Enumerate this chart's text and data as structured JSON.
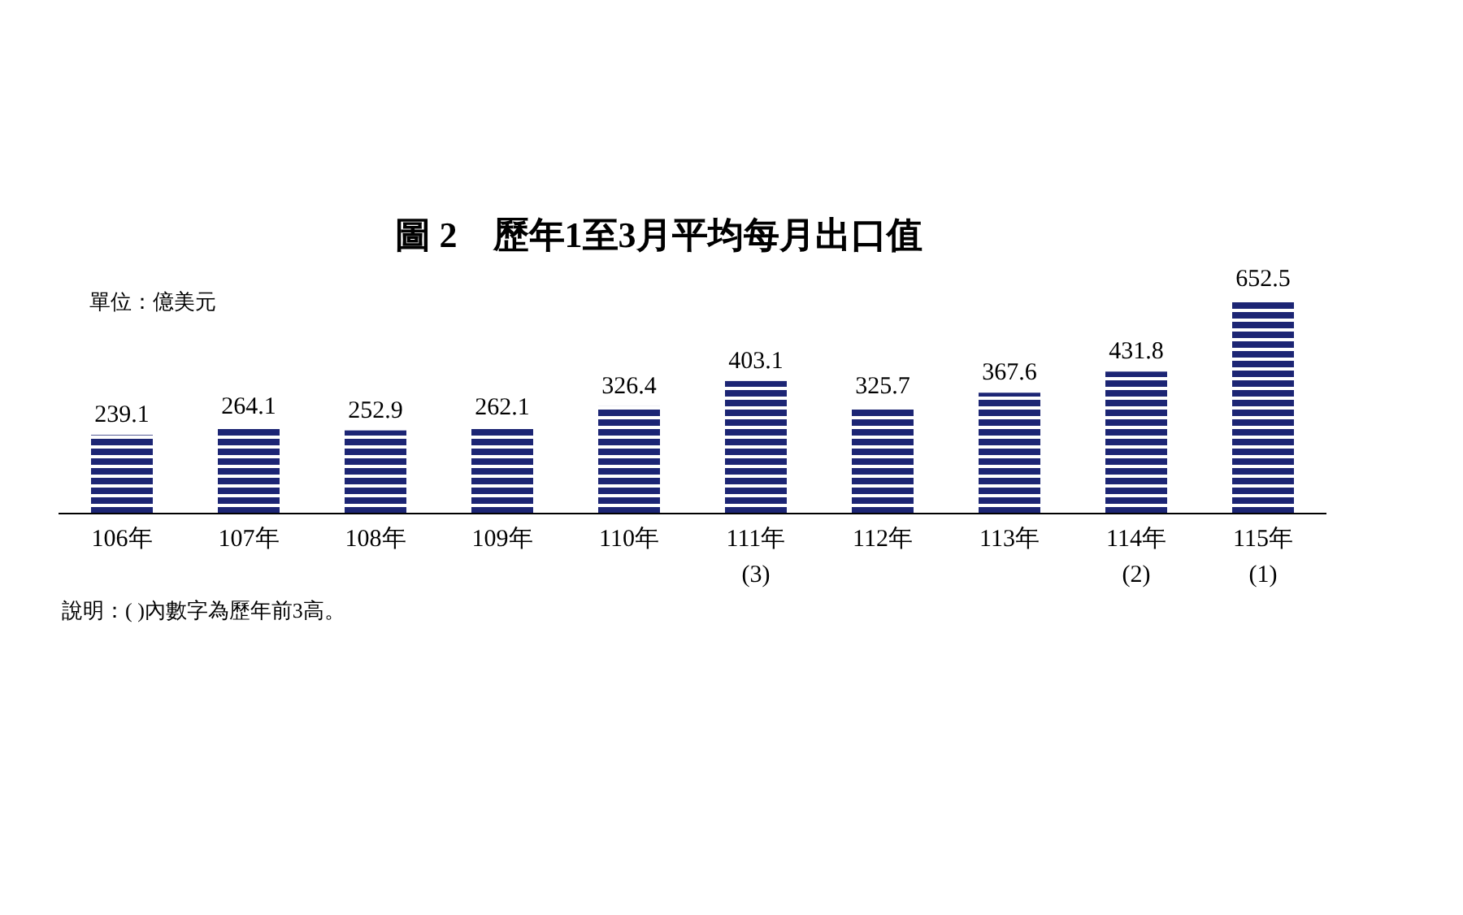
{
  "chart_data": {
    "type": "bar",
    "title": "圖 2　歷年1至3月平均每月出口值",
    "subtitle": "單位：億美元",
    "categories": [
      "106年",
      "107年",
      "108年",
      "109年",
      "110年",
      "111年\n(3)",
      "112年",
      "113年",
      "114年\n(2)",
      "115年\n(1)"
    ],
    "values": [
      239.1,
      264.1,
      252.9,
      262.1,
      326.4,
      403.1,
      325.7,
      367.6,
      431.8,
      652.5
    ],
    "color": "#1c2574",
    "data_labels": true,
    "tick_labels": "x",
    "annotations": [
      "說明：( )內數字為歷年前3高。"
    ]
  }
}
